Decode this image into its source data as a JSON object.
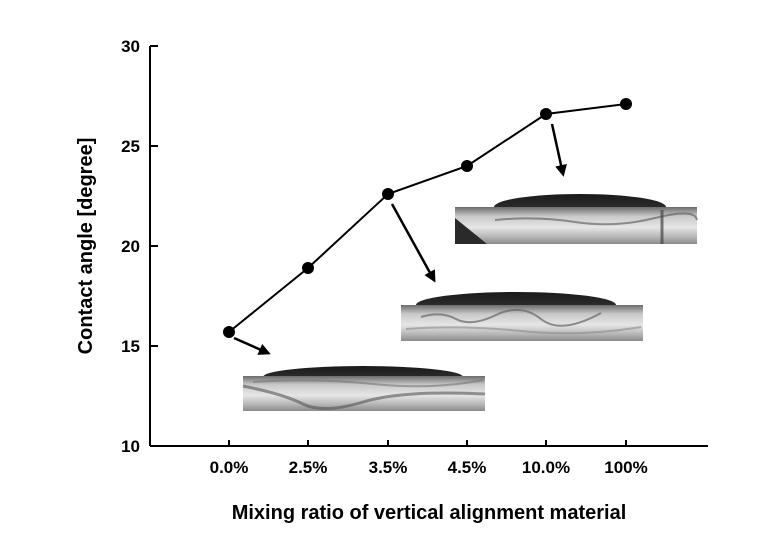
{
  "chart_data": {
    "type": "line",
    "title": "",
    "xlabel": "Mixing ratio of vertical alignment material",
    "ylabel": "Contact angle [degree]",
    "categories": [
      "0.0%",
      "2.5%",
      "3.5%",
      "4.5%",
      "10.0%",
      "100%"
    ],
    "series": [
      {
        "values": [
          15.7,
          18.9,
          22.6,
          24.0,
          26.6,
          27.1
        ]
      }
    ],
    "ylim": [
      10,
      30
    ],
    "yticks": [
      10,
      15,
      20,
      25,
      30
    ],
    "grid": false,
    "insets": [
      {
        "category": "0.0%",
        "description": "droplet micrograph"
      },
      {
        "category": "3.5%",
        "description": "droplet micrograph"
      },
      {
        "category": "10.0%",
        "description": "droplet micrograph"
      }
    ],
    "colors": {
      "line": "#000000",
      "marker": "#000000"
    }
  }
}
